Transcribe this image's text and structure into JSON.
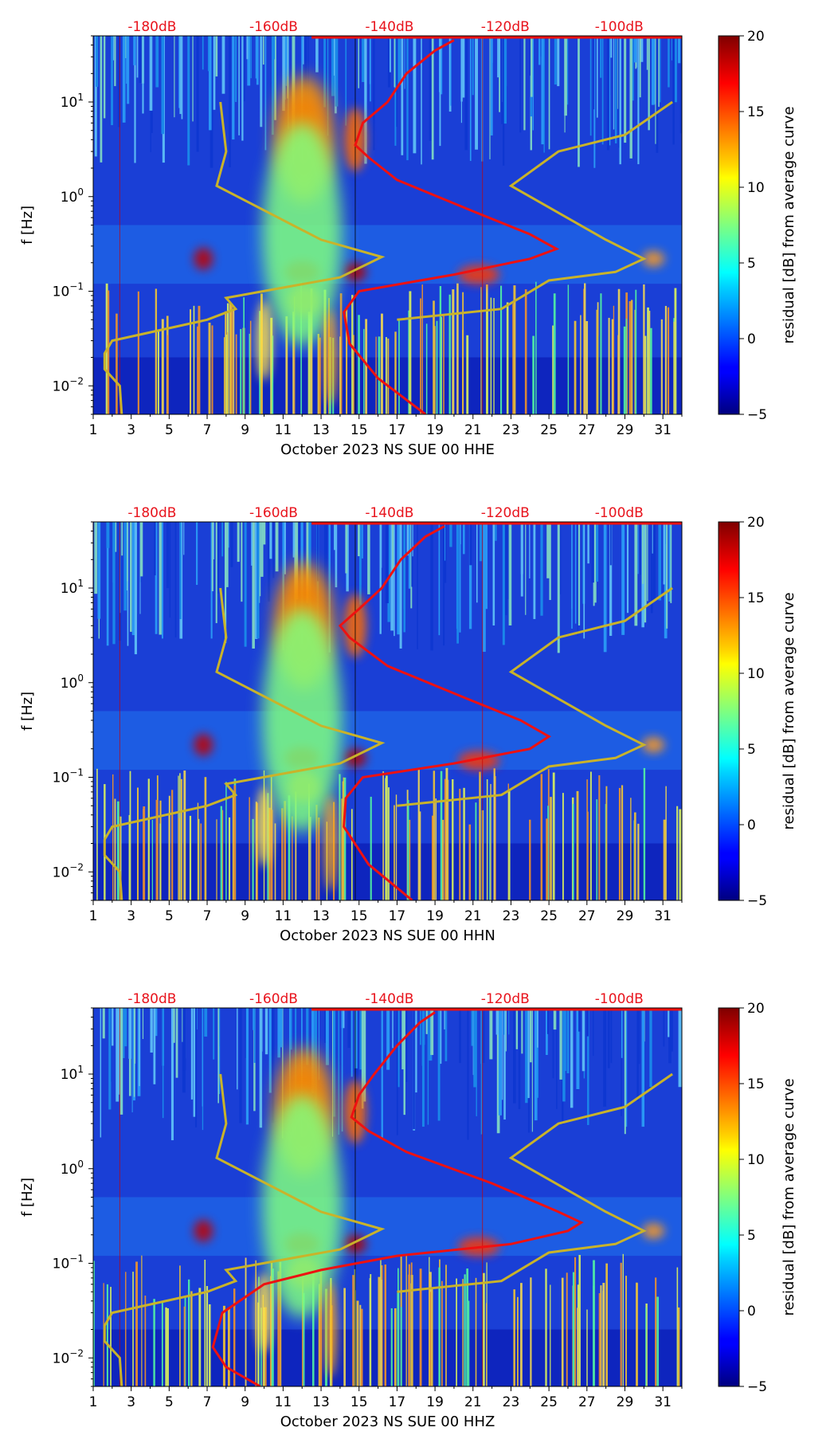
{
  "chart_data": [
    {
      "type": "heatmap",
      "xlabel": "October 2023 NS SUE 00 HHE",
      "ylabel": "f [Hz]",
      "x_ticks": [
        "1",
        "3",
        "5",
        "7",
        "9",
        "11",
        "13",
        "15",
        "17",
        "19",
        "21",
        "23",
        "25",
        "27",
        "29",
        "31"
      ],
      "xlim": [
        1,
        32
      ],
      "y_scale": "log",
      "y_ticks": [
        "10^{-2}",
        "10^{-1}",
        "10^{0}",
        "10^{1}"
      ],
      "ylim": [
        0.005,
        50
      ],
      "top_labels": [
        "-180dB",
        "-160dB",
        "-140dB",
        "-120dB",
        "-100dB"
      ],
      "colorbar": {
        "label": "residual [dB] from average curve",
        "ticks": [
          "−5",
          "0",
          "5",
          "10",
          "15",
          "20"
        ],
        "range": [
          -5,
          20
        ]
      },
      "noise_model_curve": [
        [
          2.5,
          0.005
        ],
        [
          2.4,
          0.01
        ],
        [
          1.6,
          0.015
        ],
        [
          1.6,
          0.022
        ],
        [
          2.0,
          0.03
        ],
        [
          7.0,
          0.05
        ],
        [
          8.5,
          0.065
        ],
        [
          8.0,
          0.085
        ],
        [
          14.0,
          0.14
        ],
        [
          16.2,
          0.23
        ],
        [
          13.0,
          0.35
        ],
        [
          7.5,
          1.3
        ],
        [
          8.0,
          3.0
        ],
        [
          7.7,
          10.0
        ]
      ],
      "reference_curve": [
        [
          17.0,
          0.05
        ],
        [
          22.5,
          0.065
        ],
        [
          25.0,
          0.13
        ],
        [
          28.5,
          0.16
        ],
        [
          30.0,
          0.22
        ],
        [
          28.0,
          0.35
        ],
        [
          23.0,
          1.3
        ],
        [
          25.5,
          3.0
        ],
        [
          29.0,
          4.5
        ],
        [
          31.5,
          10.0
        ]
      ],
      "average_curve": [
        [
          18.5,
          0.005
        ],
        [
          16.0,
          0.012
        ],
        [
          14.5,
          0.028
        ],
        [
          14.2,
          0.06
        ],
        [
          15.0,
          0.1
        ],
        [
          20.0,
          0.15
        ],
        [
          24.0,
          0.22
        ],
        [
          25.4,
          0.28
        ],
        [
          24.0,
          0.4
        ],
        [
          21.0,
          0.7
        ],
        [
          17.0,
          1.5
        ],
        [
          15.5,
          2.6
        ],
        [
          14.8,
          3.5
        ],
        [
          15.2,
          6.0
        ],
        [
          16.5,
          10.0
        ],
        [
          17.5,
          20.0
        ],
        [
          19.0,
          35.0
        ],
        [
          20.0,
          45.0
        ]
      ]
    },
    {
      "type": "heatmap",
      "xlabel": "October 2023 NS SUE 00 HHN",
      "ylabel": "f [Hz]",
      "x_ticks": [
        "1",
        "3",
        "5",
        "7",
        "9",
        "11",
        "13",
        "15",
        "17",
        "19",
        "21",
        "23",
        "25",
        "27",
        "29",
        "31"
      ],
      "xlim": [
        1,
        32
      ],
      "y_scale": "log",
      "y_ticks": [
        "10^{-2}",
        "10^{-1}",
        "10^{0}",
        "10^{1}"
      ],
      "ylim": [
        0.005,
        50
      ],
      "top_labels": [
        "-180dB",
        "-160dB",
        "-140dB",
        "-120dB",
        "-100dB"
      ],
      "colorbar": {
        "label": "residual [dB] from average curve",
        "ticks": [
          "−5",
          "0",
          "5",
          "10",
          "15",
          "20"
        ],
        "range": [
          -5,
          20
        ]
      },
      "noise_model_curve": [
        [
          2.5,
          0.005
        ],
        [
          2.4,
          0.01
        ],
        [
          1.6,
          0.015
        ],
        [
          1.6,
          0.022
        ],
        [
          2.0,
          0.03
        ],
        [
          7.0,
          0.05
        ],
        [
          8.5,
          0.065
        ],
        [
          8.0,
          0.085
        ],
        [
          14.0,
          0.14
        ],
        [
          16.2,
          0.23
        ],
        [
          13.0,
          0.35
        ],
        [
          7.5,
          1.3
        ],
        [
          8.0,
          3.0
        ],
        [
          7.7,
          10.0
        ]
      ],
      "reference_curve": [
        [
          17.0,
          0.05
        ],
        [
          22.5,
          0.065
        ],
        [
          25.0,
          0.13
        ],
        [
          28.5,
          0.16
        ],
        [
          30.0,
          0.22
        ],
        [
          28.0,
          0.35
        ],
        [
          23.0,
          1.3
        ],
        [
          25.5,
          3.0
        ],
        [
          29.0,
          4.5
        ],
        [
          31.5,
          10.0
        ]
      ],
      "average_curve": [
        [
          17.8,
          0.005
        ],
        [
          15.5,
          0.012
        ],
        [
          14.2,
          0.03
        ],
        [
          14.3,
          0.06
        ],
        [
          15.2,
          0.1
        ],
        [
          20.0,
          0.14
        ],
        [
          24.0,
          0.2
        ],
        [
          25.0,
          0.27
        ],
        [
          23.5,
          0.4
        ],
        [
          20.5,
          0.7
        ],
        [
          16.5,
          1.5
        ],
        [
          14.5,
          3.0
        ],
        [
          14.0,
          4.0
        ],
        [
          15.0,
          6.0
        ],
        [
          16.2,
          10.0
        ],
        [
          17.2,
          20.0
        ],
        [
          18.5,
          35.0
        ],
        [
          19.5,
          45.0
        ]
      ]
    },
    {
      "type": "heatmap",
      "xlabel": "October 2023 NS SUE 00 HHZ",
      "ylabel": "f [Hz]",
      "x_ticks": [
        "1",
        "3",
        "5",
        "7",
        "9",
        "11",
        "13",
        "15",
        "17",
        "19",
        "21",
        "23",
        "25",
        "27",
        "29",
        "31"
      ],
      "xlim": [
        1,
        32
      ],
      "y_scale": "log",
      "y_ticks": [
        "10^{-2}",
        "10^{-1}",
        "10^{0}",
        "10^{1}"
      ],
      "ylim": [
        0.005,
        50
      ],
      "top_labels": [
        "-180dB",
        "-160dB",
        "-140dB",
        "-120dB",
        "-100dB"
      ],
      "colorbar": {
        "label": "residual [dB] from average curve",
        "ticks": [
          "−5",
          "0",
          "5",
          "10",
          "15",
          "20"
        ],
        "range": [
          -5,
          20
        ]
      },
      "noise_model_curve": [
        [
          2.5,
          0.005
        ],
        [
          2.4,
          0.01
        ],
        [
          1.6,
          0.015
        ],
        [
          1.6,
          0.022
        ],
        [
          2.0,
          0.03
        ],
        [
          7.0,
          0.05
        ],
        [
          8.5,
          0.065
        ],
        [
          8.0,
          0.085
        ],
        [
          14.0,
          0.14
        ],
        [
          16.2,
          0.23
        ],
        [
          13.0,
          0.35
        ],
        [
          7.5,
          1.3
        ],
        [
          8.0,
          3.0
        ],
        [
          7.7,
          10.0
        ]
      ],
      "reference_curve": [
        [
          17.0,
          0.05
        ],
        [
          22.5,
          0.065
        ],
        [
          25.0,
          0.13
        ],
        [
          28.5,
          0.16
        ],
        [
          30.0,
          0.22
        ],
        [
          28.0,
          0.35
        ],
        [
          23.0,
          1.3
        ],
        [
          25.5,
          3.0
        ],
        [
          29.0,
          4.5
        ],
        [
          31.5,
          10.0
        ]
      ],
      "average_curve": [
        [
          9.8,
          0.005
        ],
        [
          8.0,
          0.008
        ],
        [
          7.3,
          0.013
        ],
        [
          7.8,
          0.03
        ],
        [
          10.0,
          0.06
        ],
        [
          13.0,
          0.085
        ],
        [
          17.0,
          0.12
        ],
        [
          23.0,
          0.16
        ],
        [
          26.0,
          0.22
        ],
        [
          26.7,
          0.27
        ],
        [
          25.5,
          0.35
        ],
        [
          22.0,
          0.7
        ],
        [
          17.5,
          1.5
        ],
        [
          15.5,
          2.5
        ],
        [
          14.6,
          3.5
        ],
        [
          15.0,
          6.0
        ],
        [
          15.8,
          10.0
        ],
        [
          17.0,
          20.0
        ],
        [
          18.2,
          35.0
        ],
        [
          19.0,
          45.0
        ]
      ]
    }
  ]
}
